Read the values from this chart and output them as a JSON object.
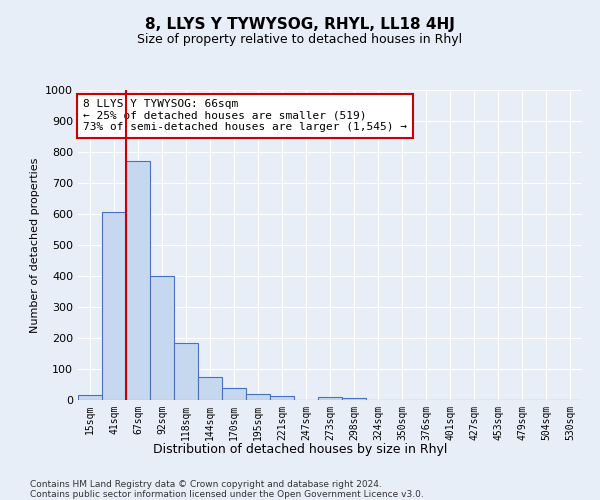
{
  "title": "8, LLYS Y TYWYSOG, RHYL, LL18 4HJ",
  "subtitle": "Size of property relative to detached houses in Rhyl",
  "xlabel": "Distribution of detached houses by size in Rhyl",
  "ylabel": "Number of detached properties",
  "bar_labels": [
    "15sqm",
    "41sqm",
    "67sqm",
    "92sqm",
    "118sqm",
    "144sqm",
    "170sqm",
    "195sqm",
    "221sqm",
    "247sqm",
    "273sqm",
    "298sqm",
    "324sqm",
    "350sqm",
    "376sqm",
    "401sqm",
    "427sqm",
    "453sqm",
    "479sqm",
    "504sqm",
    "530sqm"
  ],
  "bar_values": [
    15,
    605,
    770,
    400,
    185,
    75,
    38,
    18,
    13,
    0,
    10,
    5,
    0,
    0,
    0,
    0,
    0,
    0,
    0,
    0,
    0
  ],
  "bar_color": "#c5d8f0",
  "bar_edge_color": "#4472c4",
  "property_line_x": 1.5,
  "annotation_title": "8 LLYS Y TYWYSOG: 66sqm",
  "annotation_line1": "← 25% of detached houses are smaller (519)",
  "annotation_line2": "73% of semi-detached houses are larger (1,545) →",
  "annotation_box_color": "#ffffff",
  "annotation_box_edge_color": "#cc0000",
  "ylim": [
    0,
    1000
  ],
  "yticks": [
    0,
    100,
    200,
    300,
    400,
    500,
    600,
    700,
    800,
    900,
    1000
  ],
  "footer": "Contains HM Land Registry data © Crown copyright and database right 2024.\nContains public sector information licensed under the Open Government Licence v3.0.",
  "background_color": "#e8eef8",
  "grid_color": "#ffffff",
  "title_fontsize": 11,
  "subtitle_fontsize": 9,
  "annotation_fontsize": 8
}
